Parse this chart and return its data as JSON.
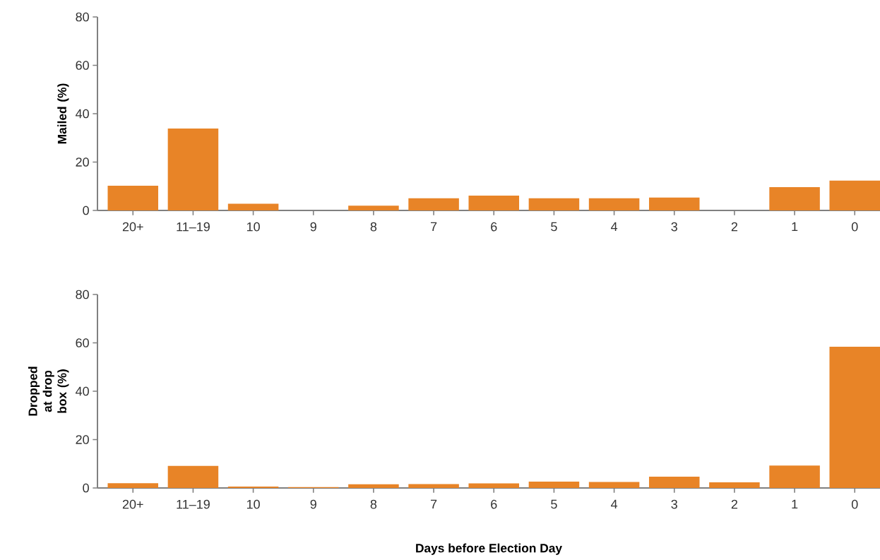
{
  "chart_data": [
    {
      "type": "bar",
      "ylabel": "Mailed (%)",
      "categories": [
        "20+",
        "11–19",
        "10",
        "9",
        "8",
        "7",
        "6",
        "5",
        "4",
        "3",
        "2",
        "1",
        "0"
      ],
      "values": [
        10.2,
        33.9,
        2.8,
        0,
        2.0,
        5.0,
        6.1,
        5.0,
        5.0,
        5.3,
        0,
        9.6,
        12.3
      ],
      "color": "#e88427",
      "ylim": [
        0,
        80
      ],
      "yticks": [
        0,
        20,
        40,
        60,
        80
      ]
    },
    {
      "type": "bar",
      "ylabel": "Dropped at drop box (%)",
      "xlabel": "Days before Election Day",
      "categories": [
        "20+",
        "11–19",
        "10",
        "9",
        "8",
        "7",
        "6",
        "5",
        "4",
        "3",
        "2",
        "1",
        "0"
      ],
      "values": [
        2.0,
        9.1,
        0.6,
        0.4,
        1.5,
        1.6,
        1.9,
        2.6,
        2.5,
        4.7,
        2.3,
        9.3,
        58.4
      ],
      "color": "#e88427",
      "ylim": [
        0,
        80
      ],
      "yticks": [
        0,
        20,
        40,
        60,
        80
      ]
    }
  ]
}
